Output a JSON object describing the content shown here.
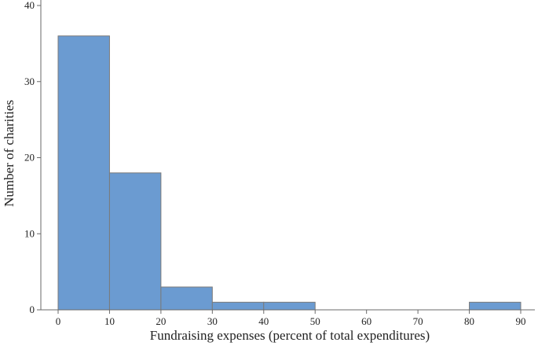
{
  "chart_data": {
    "type": "bar",
    "subtype": "histogram",
    "title": "",
    "xlabel": "Fundraising expenses (percent of total expenditures)",
    "ylabel": "Number  of charities",
    "bins": [
      {
        "start": 0,
        "end": 10,
        "value": 36
      },
      {
        "start": 10,
        "end": 20,
        "value": 18
      },
      {
        "start": 20,
        "end": 30,
        "value": 3
      },
      {
        "start": 30,
        "end": 40,
        "value": 1
      },
      {
        "start": 40,
        "end": 50,
        "value": 1
      },
      {
        "start": 50,
        "end": 60,
        "value": 0
      },
      {
        "start": 60,
        "end": 70,
        "value": 0
      },
      {
        "start": 70,
        "end": 80,
        "value": 0
      },
      {
        "start": 80,
        "end": 90,
        "value": 1
      }
    ],
    "xlim": [
      0,
      90
    ],
    "ylim": [
      0,
      40
    ],
    "xticks": [
      "0",
      "10",
      "20",
      "30",
      "40",
      "50",
      "60",
      "70",
      "80",
      "90"
    ],
    "yticks": [
      "0",
      "10",
      "20",
      "30",
      "40"
    ],
    "grid": false,
    "legend": "none",
    "bar_color": "#6b9bd1",
    "bar_edge_color": "#7a7a7a"
  }
}
